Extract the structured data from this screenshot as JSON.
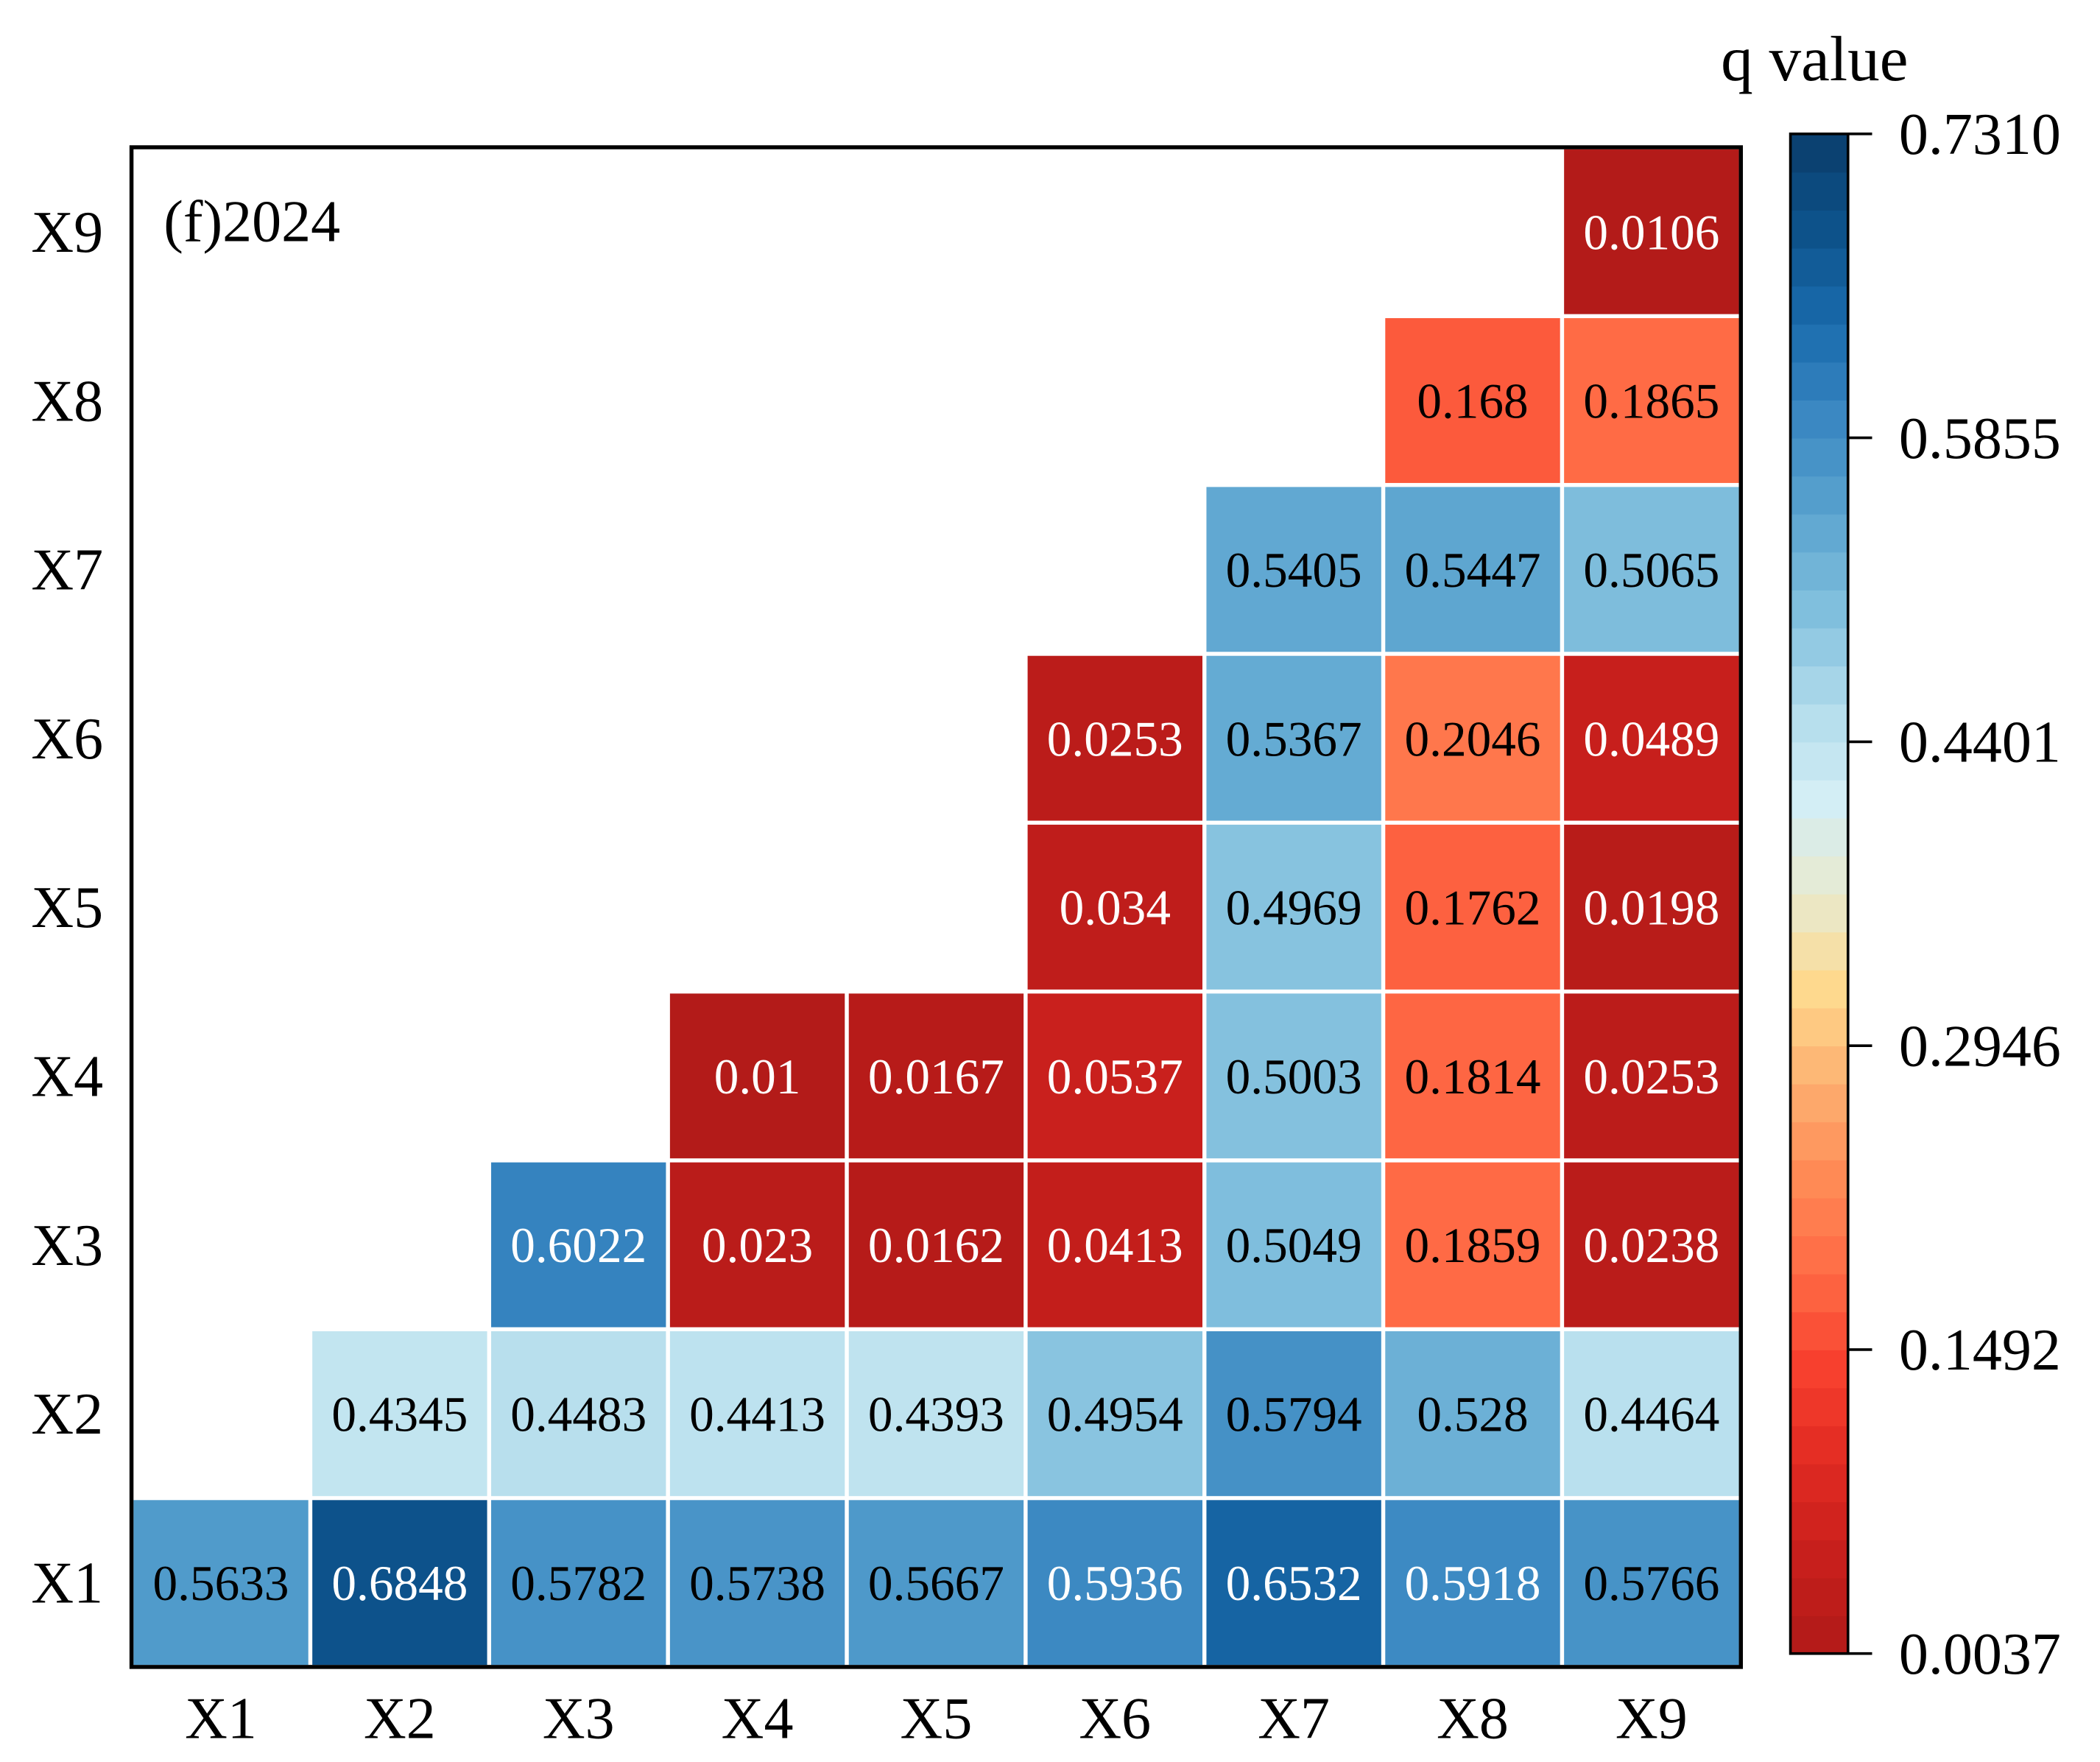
{
  "chart_data": {
    "type": "heatmap",
    "title": "(f)2024",
    "colorbar_title": "q value",
    "x_categories": [
      "X1",
      "X2",
      "X3",
      "X4",
      "X5",
      "X6",
      "X7",
      "X8",
      "X9"
    ],
    "y_categories": [
      "X1",
      "X2",
      "X3",
      "X4",
      "X5",
      "X6",
      "X7",
      "X8",
      "X9"
    ],
    "values": [
      [
        0.5633,
        0.6848,
        0.5782,
        0.5738,
        0.5667,
        0.5936,
        0.6532,
        0.5918,
        0.5766
      ],
      [
        null,
        0.4345,
        0.4483,
        0.4413,
        0.4393,
        0.4954,
        0.5794,
        0.528,
        0.4464
      ],
      [
        null,
        null,
        0.6022,
        0.023,
        0.0162,
        0.0413,
        0.5049,
        0.1859,
        0.0238
      ],
      [
        null,
        null,
        null,
        0.01,
        0.0167,
        0.0537,
        0.5003,
        0.1814,
        0.0253
      ],
      [
        null,
        null,
        null,
        null,
        null,
        0.034,
        0.4969,
        0.1762,
        0.0198
      ],
      [
        null,
        null,
        null,
        null,
        null,
        0.0253,
        0.5367,
        0.2046,
        0.0489
      ],
      [
        null,
        null,
        null,
        null,
        null,
        null,
        0.5405,
        0.5447,
        0.5065
      ],
      [
        null,
        null,
        null,
        null,
        null,
        null,
        null,
        0.168,
        0.1865
      ],
      [
        null,
        null,
        null,
        null,
        null,
        null,
        null,
        null,
        0.0106
      ]
    ],
    "value_labels": [
      [
        "0.5633",
        "0.6848",
        "0.5782",
        "0.5738",
        "0.5667",
        "0.5936",
        "0.6532",
        "0.5918",
        "0.5766"
      ],
      [
        null,
        "0.4345",
        "0.4483",
        "0.4413",
        "0.4393",
        "0.4954",
        "0.5794",
        "0.528",
        "0.4464"
      ],
      [
        null,
        null,
        "0.6022",
        "0.023",
        "0.0162",
        "0.0413",
        "0.5049",
        "0.1859",
        "0.0238"
      ],
      [
        null,
        null,
        null,
        "0.01",
        "0.0167",
        "0.0537",
        "0.5003",
        "0.1814",
        "0.0253"
      ],
      [
        null,
        null,
        null,
        null,
        null,
        "0.034",
        "0.4969",
        "0.1762",
        "0.0198"
      ],
      [
        null,
        null,
        null,
        null,
        null,
        "0.0253",
        "0.5367",
        "0.2046",
        "0.0489"
      ],
      [
        null,
        null,
        null,
        null,
        null,
        null,
        "0.5405",
        "0.5447",
        "0.5065"
      ],
      [
        null,
        null,
        null,
        null,
        null,
        null,
        null,
        "0.168",
        "0.1865"
      ],
      [
        null,
        null,
        null,
        null,
        null,
        null,
        null,
        null,
        "0.0106"
      ]
    ],
    "colorbar_range": [
      0.0037,
      0.731
    ],
    "colorbar_ticks": [
      "0.0037",
      "0.1492",
      "0.2946",
      "0.4401",
      "0.5855",
      "0.7310"
    ],
    "colormap": [
      "#b01a18",
      "#c71f1c",
      "#e02a22",
      "#f7402e",
      "#ff6a45",
      "#ff8a55",
      "#fdb070",
      "#fed98e",
      "#e8ead0",
      "#d3eef5",
      "#b0dbeb",
      "#80bfdd",
      "#5aa3cf",
      "#3b88c2",
      "#196bad",
      "#0d528a",
      "#0a3d6b"
    ],
    "legend_position": "right"
  }
}
